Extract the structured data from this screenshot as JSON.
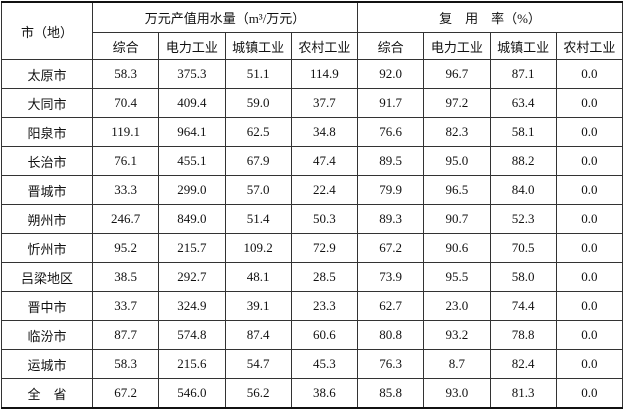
{
  "table": {
    "header": {
      "corner": "市（地）",
      "groups": [
        "万元产值用水量（m³/万元）",
        "复　用　率（%）"
      ],
      "columns": [
        "综合",
        "电力工业",
        "城镇工业",
        "农村工业",
        "综合",
        "电力工业",
        "城镇工业",
        "农村工业"
      ]
    },
    "rows": [
      [
        "太原市",
        "58.3",
        "375.3",
        "51.1",
        "114.9",
        "92.0",
        "96.7",
        "87.1",
        "0.0"
      ],
      [
        "大同市",
        "70.4",
        "409.4",
        "59.0",
        "37.7",
        "91.7",
        "97.2",
        "63.4",
        "0.0"
      ],
      [
        "阳泉市",
        "119.1",
        "964.1",
        "62.5",
        "34.8",
        "76.6",
        "82.3",
        "58.1",
        "0.0"
      ],
      [
        "长治市",
        "76.1",
        "455.1",
        "67.9",
        "47.4",
        "89.5",
        "95.0",
        "88.2",
        "0.0"
      ],
      [
        "晋城市",
        "33.3",
        "299.0",
        "57.0",
        "22.4",
        "79.9",
        "96.5",
        "84.0",
        "0.0"
      ],
      [
        "朔州市",
        "246.7",
        "849.0",
        "51.4",
        "50.3",
        "89.3",
        "90.7",
        "52.3",
        "0.0"
      ],
      [
        "忻州市",
        "95.2",
        "215.7",
        "109.2",
        "72.9",
        "67.2",
        "90.6",
        "70.5",
        "0.0"
      ],
      [
        "吕梁地区",
        "38.5",
        "292.7",
        "48.1",
        "28.5",
        "73.9",
        "95.5",
        "58.0",
        "0.0"
      ],
      [
        "晋中市",
        "33.7",
        "324.9",
        "39.1",
        "23.3",
        "62.7",
        "23.0",
        "74.4",
        "0.0"
      ],
      [
        "临汾市",
        "87.7",
        "574.8",
        "87.4",
        "60.6",
        "80.8",
        "93.2",
        "78.8",
        "0.0"
      ],
      [
        "运城市",
        "58.3",
        "215.6",
        "54.7",
        "45.3",
        "76.3",
        "8.7",
        "82.4",
        "0.0"
      ],
      [
        "全　省",
        "67.2",
        "546.0",
        "56.2",
        "38.6",
        "85.8",
        "93.0",
        "81.3",
        "0.0"
      ]
    ]
  }
}
